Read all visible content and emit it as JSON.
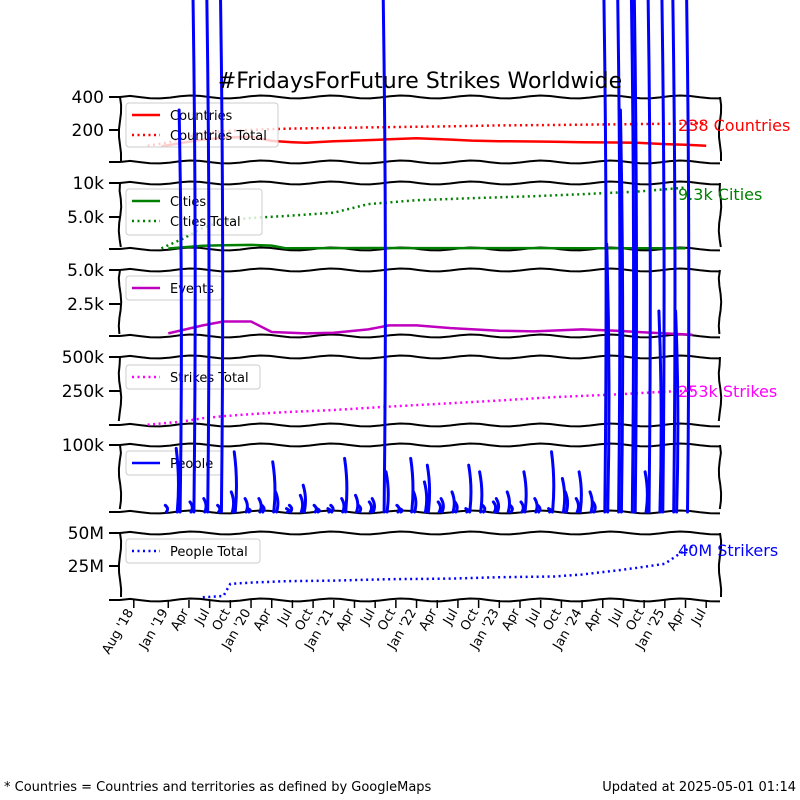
{
  "title": "#FridaysForFuture Strikes Worldwide",
  "footnote": "* Countries = Countries and territories as defined by GoogleMaps",
  "updated": "Updated at 2025-05-01 01:14",
  "colors": {
    "countries": "#ff0000",
    "cities": "#008000",
    "events": "#bf00bf",
    "strikes": "#ff00ff",
    "people": "#0000ff"
  },
  "chart_data": {
    "type": "line",
    "x_tick_labels": [
      "Aug '18",
      "Jan '19",
      "Apr",
      "Jul",
      "Oct",
      "Jan '20",
      "Apr",
      "Jul",
      "Oct",
      "Jan '21",
      "Apr",
      "Jul",
      "Oct",
      "Jan '22",
      "Apr",
      "Jul",
      "Oct",
      "Jan '23",
      "Apr",
      "Jul",
      "Oct",
      "Jan '24",
      "Apr",
      "Jul",
      "Oct",
      "Jan '25",
      "Apr",
      "Jul"
    ],
    "panels": [
      {
        "id": "countries",
        "y_tick_labels": [
          "400",
          "200"
        ],
        "legend": [
          "Countries",
          "Countries Total"
        ],
        "end_label": "238 Countries",
        "series": [
          {
            "name": "Countries",
            "style": "solid",
            "color": "#ff0000",
            "x": [
              "2018-12",
              "2019-03",
              "2019-06",
              "2019-09",
              "2020-01",
              "2020-04",
              "2020-07",
              "2020-09",
              "2021-01",
              "2021-04",
              "2021-09",
              "2022-01",
              "2022-06",
              "2022-09",
              "2023-01",
              "2023-06",
              "2023-09",
              "2024-01",
              "2024-06",
              "2024-09",
              "2025-01",
              "2025-04",
              "2025-07"
            ],
            "y": [
              96,
              118,
              138,
              150,
              155,
              130,
              122,
              118,
              128,
              132,
              140,
              146,
              138,
              132,
              128,
              126,
              124,
              122,
              120,
              118,
              110,
              106,
              100
            ]
          },
          {
            "name": "Countries Total",
            "style": "dotted",
            "color": "#ff0000",
            "x": [
              "2018-10",
              "2019-01",
              "2019-03",
              "2019-06",
              "2019-09",
              "2020-01",
              "2020-06",
              "2021-01",
              "2021-09",
              "2022-06",
              "2023-01",
              "2023-09",
              "2024-06",
              "2025-01",
              "2025-07"
            ],
            "y": [
              100,
              120,
              148,
              175,
              190,
              198,
              205,
              210,
              215,
              220,
              225,
              228,
              232,
              235,
              238
            ]
          }
        ]
      },
      {
        "id": "cities",
        "y_tick_labels": [
          "10k",
          "5.0k"
        ],
        "legend": [
          "Cities",
          "Cities Total"
        ],
        "end_label": "9.3k Cities",
        "series": [
          {
            "name": "Cities",
            "style": "solid",
            "color": "#008000",
            "x": [
              "2019-01",
              "2019-06",
              "2019-09",
              "2020-01",
              "2020-04",
              "2020-06",
              "2021-01",
              "2021-06",
              "2022-01",
              "2022-09",
              "2023-06",
              "2024-01",
              "2024-09",
              "2025-04"
            ],
            "y": [
              80,
              500,
              560,
              620,
              520,
              120,
              130,
              150,
              140,
              130,
              130,
              120,
              110,
              100
            ]
          },
          {
            "name": "Cities Total",
            "style": "dotted",
            "color": "#008000",
            "x": [
              "2018-12",
              "2019-03",
              "2019-06",
              "2019-09",
              "2020-01",
              "2020-06",
              "2021-01",
              "2021-06",
              "2022-01",
              "2022-09",
              "2023-06",
              "2024-01",
              "2024-09",
              "2025-04"
            ],
            "y": [
              100,
              1500,
              3200,
              4300,
              4700,
              5000,
              5500,
              6800,
              7400,
              7700,
              8000,
              8300,
              8700,
              9300
            ]
          }
        ]
      },
      {
        "id": "events",
        "y_tick_labels": [
          "5.0k",
          "2.5k"
        ],
        "legend": [
          "Events"
        ],
        "end_label": "",
        "series": [
          {
            "name": "Events",
            "style": "solid",
            "color": "#bf00bf",
            "x": [
              "2019-01",
              "2019-06",
              "2019-09",
              "2020-01",
              "2020-04",
              "2020-09",
              "2021-01",
              "2021-06",
              "2021-09",
              "2022-01",
              "2022-06",
              "2023-01",
              "2023-06",
              "2024-01",
              "2024-06",
              "2024-09",
              "2025-01",
              "2025-05"
            ],
            "y": [
              200,
              800,
              1100,
              1100,
              300,
              200,
              250,
              500,
              800,
              800,
              600,
              400,
              350,
              500,
              400,
              300,
              200,
              100
            ]
          }
        ]
      },
      {
        "id": "strikes",
        "y_tick_labels": [
          "500k",
          "250k"
        ],
        "legend": [
          "Strikes Total"
        ],
        "end_label": "253k Strikes",
        "series": [
          {
            "name": "Strikes Total",
            "style": "dotted",
            "color": "#ff00ff",
            "x": [
              "2018-10",
              "2019-03",
              "2019-06",
              "2019-09",
              "2020-01",
              "2020-06",
              "2021-01",
              "2021-09",
              "2022-06",
              "2023-01",
              "2023-09",
              "2024-06",
              "2025-01",
              "2025-05"
            ],
            "y": [
              2000,
              25000,
              50000,
              65000,
              80000,
              95000,
              110000,
              135000,
              160000,
              180000,
              205000,
              225000,
              245000,
              253000
            ]
          }
        ]
      },
      {
        "id": "people",
        "y_tick_labels": [
          "100k"
        ],
        "legend": [
          "People"
        ],
        "end_label": "",
        "series": [
          {
            "name": "People",
            "style": "solid",
            "color": "#0000ff",
            "x": [
              "2019-01",
              "2019-02",
              "2019-03",
              "2019-04",
              "2019-05",
              "2019-06",
              "2019-07",
              "2019-08",
              "2019-09",
              "2019-10",
              "2019-11",
              "2019-12",
              "2020-01",
              "2020-02",
              "2020-03",
              "2020-04",
              "2020-05",
              "2020-06",
              "2020-07",
              "2020-08",
              "2020-09",
              "2020-10",
              "2020-11",
              "2020-12",
              "2021-01",
              "2021-02",
              "2021-03",
              "2021-04",
              "2021-05",
              "2021-06",
              "2021-07",
              "2021-08",
              "2021-09",
              "2021-10",
              "2021-11",
              "2021-12",
              "2022-01",
              "2022-02",
              "2022-03",
              "2022-04",
              "2022-05",
              "2022-06",
              "2022-07",
              "2022-08",
              "2022-09",
              "2022-10",
              "2022-11",
              "2022-12",
              "2023-01",
              "2023-02",
              "2023-03",
              "2023-04",
              "2023-05",
              "2023-06",
              "2023-07",
              "2023-08",
              "2023-09",
              "2023-10",
              "2023-11",
              "2023-12",
              "2024-01",
              "2024-02",
              "2024-03",
              "2024-04",
              "2024-05",
              "2024-06",
              "2024-07",
              "2024-08",
              "2024-09",
              "2024-10",
              "2024-11",
              "2024-12",
              "2025-01",
              "2025-02",
              "2025-03",
              "2025-04"
            ],
            "y": [
              10000,
              95000,
              600000,
              15000,
              800000,
              20000,
              950000,
              10000,
              1500000,
              30000,
              90000,
              20000,
              5000,
              20000,
              10000,
              75000,
              30000,
              5000,
              10000,
              25000,
              40000,
              10000,
              5000,
              5000,
              10000,
              20000,
              80000,
              25000,
              10000,
              15000,
              20000,
              1500000,
              60000,
              10000,
              5000,
              80000,
              30000,
              45000,
              70000,
              15000,
              20000,
              30000,
              15000,
              5000,
              70000,
              60000,
              10000,
              15000,
              20000,
              30000,
              10000,
              15000,
              60000,
              20000,
              10000,
              5000,
              90000,
              50000,
              30000,
              20000,
              60000,
              30000,
              15000,
              1500000,
              400000,
              1500000,
              600000,
              1500000,
              800000,
              60000,
              1500000,
              300000,
              1200000,
              1500000,
              300000,
              1500000
            ]
          }
        ]
      },
      {
        "id": "people_total",
        "y_tick_labels": [
          "50M",
          "25M"
        ],
        "legend": [
          "People Total"
        ],
        "end_label": "40M Strikers",
        "series": [
          {
            "name": "People Total",
            "style": "dotted",
            "color": "#0000ff",
            "x": [
              "2019-06",
              "2019-09",
              "2019-10",
              "2020-01",
              "2020-06",
              "2021-01",
              "2021-09",
              "2022-06",
              "2023-01",
              "2023-09",
              "2024-01",
              "2024-06",
              "2024-09",
              "2025-01",
              "2025-03",
              "2025-05"
            ],
            "y": [
              2000000,
              3000000,
              12000000,
              13000000,
              14000000,
              14500000,
              15500000,
              16000000,
              17000000,
              17500000,
              19000000,
              22000000,
              24000000,
              27000000,
              34000000,
              40000000
            ]
          }
        ]
      }
    ]
  }
}
